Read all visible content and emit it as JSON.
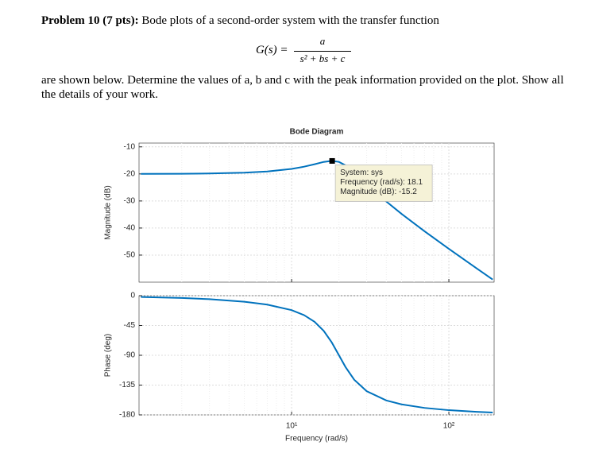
{
  "problem": {
    "label": "Problem 10 (7 pts):",
    "intro": "Bode plots of a second-order system with the transfer function",
    "equation": {
      "lhs": "G(s) =",
      "numerator": "a",
      "denominator": "s² + bs + c"
    },
    "body": "are shown below. Determine the values of a, b and c with the peak information provided on the plot. Show all the details of your work."
  },
  "chart_data": [
    {
      "type": "line",
      "title": "Bode Diagram",
      "ylabel": "Magnitude (dB)",
      "log_x": true,
      "grid": true,
      "xlim": [
        1.07,
        194
      ],
      "xticks": [
        10,
        100
      ],
      "ylim": [
        -8.6,
        -60
      ],
      "yticks": [
        -10,
        -20,
        -30,
        -40,
        -50
      ],
      "x": [
        1.1,
        2,
        3,
        5,
        7,
        10,
        12,
        14,
        16,
        18,
        20,
        22,
        25,
        30,
        40,
        50,
        70,
        100,
        150,
        190
      ],
      "series": [
        {
          "color": "#0072bd",
          "values": [
            -19.98,
            -19.93,
            -19.84,
            -19.55,
            -19.1,
            -18.15,
            -17.32,
            -16.41,
            -15.56,
            -15.16,
            -15.56,
            -16.81,
            -19.44,
            -23.75,
            -30.19,
            -34.75,
            -41.17,
            -47.67,
            -54.88,
            -59.03
          ]
        }
      ],
      "datatip": {
        "x": 18.1,
        "y": -15.2,
        "lines": [
          "System: sys",
          "Frequency (rad/s): 18.1",
          "Magnitude (dB): -15.2"
        ]
      }
    },
    {
      "type": "line",
      "xlabel": "Frequency (rad/s)",
      "ylabel": "Phase (deg)",
      "log_x": true,
      "grid": true,
      "xlim": [
        1.07,
        194
      ],
      "xticks": [
        {
          "value": 10,
          "label": "10¹"
        },
        {
          "value": 100,
          "label": "10²"
        }
      ],
      "ylim": [
        0,
        -180
      ],
      "yticks": [
        0,
        -45,
        -90,
        -135,
        -180
      ],
      "x": [
        1.1,
        2,
        3,
        5,
        7,
        10,
        12,
        14,
        16,
        18,
        20,
        22,
        25,
        30,
        40,
        50,
        70,
        100,
        150,
        190
      ],
      "series": [
        {
          "color": "#0072bd",
          "values": [
            -1.9,
            -3.47,
            -5.26,
            -9.09,
            -13.46,
            -21.8,
            -29.36,
            -39.47,
            -53.13,
            -70.6,
            -90,
            -107.6,
            -126.9,
            -144.2,
            -158.2,
            -164.05,
            -169.43,
            -172.87,
            -175.34,
            -176.35
          ]
        }
      ]
    }
  ]
}
